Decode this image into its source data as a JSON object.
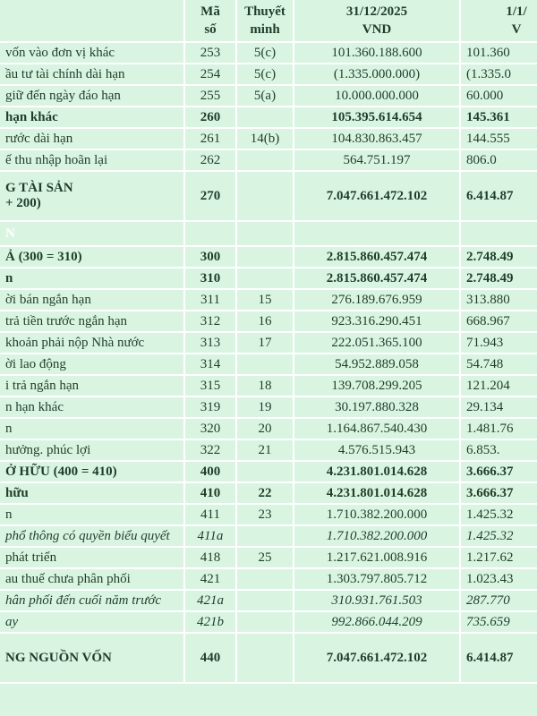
{
  "header": {
    "code_line1": "Mã",
    "code_line2": "số",
    "note_line1": "Thuyết",
    "note_line2": "minh",
    "col1_line1": "31/12/2025",
    "col1_line2": "VND",
    "col2_line1": "1/1/",
    "col2_line2": "V"
  },
  "rows": [
    {
      "name": "vốn vào đơn vị khác",
      "code": "253",
      "note": "5(c)",
      "v1": "101.360.188.600",
      "v2": "101.360",
      "style": "normal"
    },
    {
      "name": "ầu tư tài chính dài hạn",
      "code": "254",
      "note": "5(c)",
      "v1": "(1.335.000.000)",
      "v2": "(1.335.0",
      "style": "normal"
    },
    {
      "name": "giữ đến ngày đáo hạn",
      "code": "255",
      "note": "5(a)",
      "v1": "10.000.000.000",
      "v2": "60.000",
      "style": "normal"
    },
    {
      "name": "hạn khác",
      "code": "260",
      "note": "",
      "v1": "105.395.614.654",
      "v2": "145.361",
      "style": "sum"
    },
    {
      "name": "rước dài hạn",
      "code": "261",
      "note": "14(b)",
      "v1": "104.830.863.457",
      "v2": "144.555",
      "style": "normal"
    },
    {
      "name": "ế thu nhập hoãn lại",
      "code": "262",
      "note": "",
      "v1": "564.751.197",
      "v2": "806.0",
      "style": "normal"
    },
    {
      "name": "G TÀI SẢN",
      "name2": "+ 200)",
      "code": "270",
      "note": "",
      "v1": "7.047.661.472.102",
      "v2": "6.414.87",
      "style": "total"
    },
    {
      "name": "N",
      "code": "",
      "note": "",
      "v1": "",
      "v2": "",
      "style": "section"
    },
    {
      "name": "Ả (300 = 310)",
      "code": "300",
      "note": "",
      "v1": "2.815.860.457.474",
      "v2": "2.748.49",
      "style": "yellow"
    },
    {
      "name": "n",
      "code": "310",
      "note": "",
      "v1": "2.815.860.457.474",
      "v2": "2.748.49",
      "style": "sum"
    },
    {
      "name": "ời bán ngắn hạn",
      "code": "311",
      "note": "15",
      "v1": "276.189.676.959",
      "v2": "313.880",
      "style": "normal"
    },
    {
      "name": "trả tiền trước ngắn hạn",
      "code": "312",
      "note": "16",
      "v1": "923.316.290.451",
      "v2": "668.967",
      "style": "normal"
    },
    {
      "name": "khoản phải nộp Nhà nước",
      "code": "313",
      "note": "17",
      "v1": "222.051.365.100",
      "v2": "71.943",
      "style": "normal"
    },
    {
      "name": "ời lao động",
      "code": "314",
      "note": "",
      "v1": "54.952.889.058",
      "v2": "54.748",
      "style": "normal"
    },
    {
      "name": "i trả ngắn hạn",
      "code": "315",
      "note": "18",
      "v1": "139.708.299.205",
      "v2": "121.204",
      "style": "normal"
    },
    {
      "name": "n hạn khác",
      "code": "319",
      "note": "19",
      "v1": "30.197.880.328",
      "v2": "29.134",
      "style": "normal"
    },
    {
      "name": "n",
      "code": "320",
      "note": "20",
      "v1": "1.164.867.540.430",
      "v2": "1.481.76",
      "style": "normal"
    },
    {
      "name": "hưởng. phúc lợi",
      "code": "322",
      "note": "21",
      "v1": "4.576.515.943",
      "v2": "6.853.",
      "style": "normal"
    },
    {
      "name": "Ở HỮU (400 = 410)",
      "code": "400",
      "note": "",
      "v1": "4.231.801.014.628",
      "v2": "3.666.37",
      "style": "yellow"
    },
    {
      "name": "hữu",
      "code": "410",
      "note": "22",
      "v1": "4.231.801.014.628",
      "v2": "3.666.37",
      "style": "sum"
    },
    {
      "name": "n",
      "code": "411",
      "note": "23",
      "v1": "1.710.382.200.000",
      "v2": "1.425.32",
      "style": "normal"
    },
    {
      "name": "phổ thông có quyền biểu quyết",
      "code": "411a",
      "note": "",
      "v1": "1.710.382.200.000",
      "v2": "1.425.32",
      "style": "italic"
    },
    {
      "name": "phát triển",
      "code": "418",
      "note": "25",
      "v1": "1.217.621.008.916",
      "v2": "1.217.62",
      "style": "normal"
    },
    {
      "name": "au thuế chưa phân phối",
      "code": "421",
      "note": "",
      "v1": "1.303.797.805.712",
      "v2": "1.023.43",
      "style": "normal"
    },
    {
      "name": "hân phối đến cuối năm trước",
      "code": "421a",
      "note": "",
      "v1": "310.931.761.503",
      "v2": "287.770",
      "style": "italic"
    },
    {
      "name": "ay",
      "code": "421b",
      "note": "",
      "v1": "992.866.044.209",
      "v2": "735.659",
      "style": "italic"
    },
    {
      "name": "NG NGUỒN VỐN",
      "name2": "",
      "code": "440",
      "note": "",
      "v1": "7.047.661.472.102",
      "v2": "6.414.87",
      "style": "total"
    }
  ]
}
